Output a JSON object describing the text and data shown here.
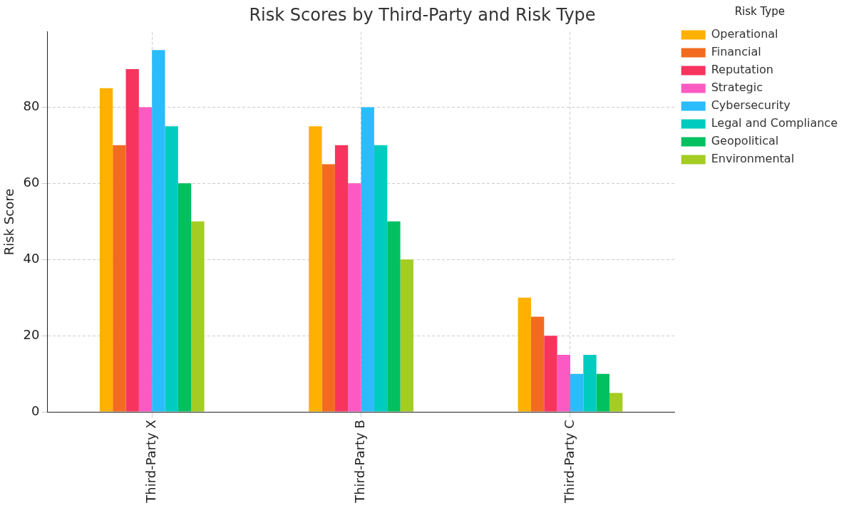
{
  "chart_data": {
    "type": "bar",
    "title": "Risk Scores by Third-Party and Risk Type",
    "ylabel": "Risk Score",
    "legend_title": "Risk Type",
    "categories": [
      "Third-Party X",
      "Third-Party B",
      "Third-Party C"
    ],
    "series": [
      {
        "name": "Operational",
        "color": "#ffb000",
        "values": [
          85,
          75,
          30
        ]
      },
      {
        "name": "Financial",
        "color": "#f26b21",
        "values": [
          70,
          65,
          25
        ]
      },
      {
        "name": "Reputation",
        "color": "#f7345e",
        "values": [
          90,
          70,
          20
        ]
      },
      {
        "name": "Strategic",
        "color": "#fc5ac3",
        "values": [
          80,
          60,
          15
        ]
      },
      {
        "name": "Cybersecurity",
        "color": "#2bbcfc",
        "values": [
          95,
          80,
          10
        ]
      },
      {
        "name": "Legal and Compliance",
        "color": "#00cbbf",
        "values": [
          75,
          70,
          15
        ]
      },
      {
        "name": "Geopolitical",
        "color": "#00c060",
        "values": [
          60,
          50,
          10
        ]
      },
      {
        "name": "Environmental",
        "color": "#a5cc22",
        "values": [
          50,
          40,
          5
        ]
      }
    ],
    "ylim": [
      0,
      99.75
    ],
    "yticks": [
      0,
      20,
      40,
      60,
      80
    ],
    "grid": true,
    "legend": "top right"
  }
}
